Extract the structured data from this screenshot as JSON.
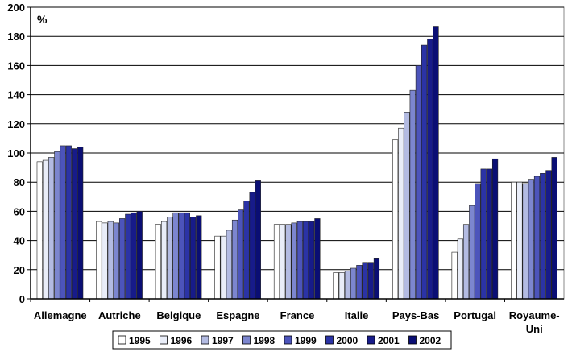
{
  "chart_data": {
    "type": "bar",
    "unit_label": "%",
    "categories": [
      "Allemagne",
      "Autriche",
      "Belgique",
      "Espagne",
      "France",
      "Italie",
      "Pays-Bas",
      "Portugal",
      "Royaume-Uni"
    ],
    "category_display": [
      [
        "Allemagne"
      ],
      [
        "Autriche"
      ],
      [
        "Belgique"
      ],
      [
        "Espagne"
      ],
      [
        "France"
      ],
      [
        "Italie"
      ],
      [
        "Pays-Bas"
      ],
      [
        "Portugal"
      ],
      [
        "Royaume-",
        "Uni"
      ]
    ],
    "series": [
      {
        "name": "1995",
        "color": "#ffffff",
        "values": [
          94,
          53,
          51,
          43,
          51,
          18,
          109,
          32,
          80
        ]
      },
      {
        "name": "1996",
        "color": "#e9edf8",
        "values": [
          95,
          52,
          53,
          43,
          51,
          18,
          117,
          41,
          80
        ]
      },
      {
        "name": "1997",
        "color": "#b3bbe2",
        "values": [
          97,
          53,
          56,
          47,
          51,
          19,
          128,
          51,
          79
        ]
      },
      {
        "name": "1998",
        "color": "#7c86cf",
        "values": [
          101,
          52,
          59,
          54,
          52,
          21,
          143,
          64,
          82
        ]
      },
      {
        "name": "1999",
        "color": "#4c54bb",
        "values": [
          105,
          55,
          59,
          61,
          53,
          23,
          160,
          79,
          84
        ]
      },
      {
        "name": "2000",
        "color": "#2b33a6",
        "values": [
          105,
          58,
          59,
          67,
          53,
          25,
          174,
          89,
          86
        ]
      },
      {
        "name": "2001",
        "color": "#171b8a",
        "values": [
          103,
          59,
          56,
          73,
          53,
          25,
          178,
          89,
          88
        ]
      },
      {
        "name": "2002",
        "color": "#0a0e74",
        "values": [
          104,
          60,
          57,
          81,
          55,
          28,
          187,
          96,
          97
        ]
      }
    ],
    "ylim": [
      0,
      200
    ],
    "y_ticks": [
      0,
      20,
      40,
      60,
      80,
      100,
      120,
      140,
      160,
      180,
      200
    ],
    "grid": true,
    "legend_position": "bottom"
  }
}
